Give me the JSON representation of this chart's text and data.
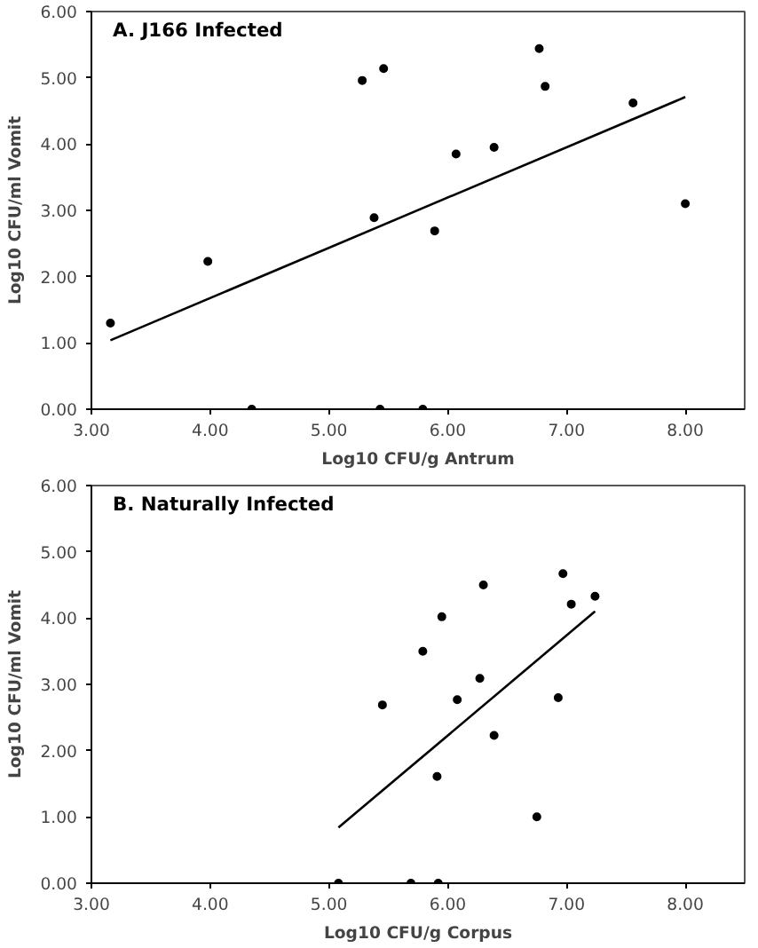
{
  "chart_data": [
    {
      "type": "scatter",
      "title": "A.  J166 Infected",
      "xlabel": "Log10 CFU/g Antrum",
      "ylabel": "Log10 CFU/ml Vomit",
      "xlim": [
        3,
        8.5
      ],
      "ylim": [
        0,
        6
      ],
      "xticks": [
        {
          "value": 3,
          "label": "3.00"
        },
        {
          "value": 4,
          "label": "4.00"
        },
        {
          "value": 5,
          "label": "5.00"
        },
        {
          "value": 6,
          "label": "6.00"
        },
        {
          "value": 7,
          "label": "7.00"
        },
        {
          "value": 8,
          "label": "8.00"
        }
      ],
      "yticks": [
        {
          "value": 0,
          "label": "0.00"
        },
        {
          "value": 1,
          "label": "1.00"
        },
        {
          "value": 2,
          "label": "2.00"
        },
        {
          "value": 3,
          "label": "3.00"
        },
        {
          "value": 4,
          "label": "4.00"
        },
        {
          "value": 5,
          "label": "5.00"
        },
        {
          "value": 6,
          "label": "6.00"
        }
      ],
      "grid": false,
      "series": [
        {
          "marker": "circle",
          "color": "#000000",
          "x": [
            3.16,
            3.98,
            4.35,
            5.28,
            5.46,
            5.38,
            5.43,
            5.79,
            5.89,
            6.07,
            6.39,
            6.77,
            6.82,
            7.56,
            8.0
          ],
          "values": [
            1.3,
            2.23,
            0,
            4.96,
            5.14,
            2.89,
            0,
            0,
            2.69,
            3.85,
            3.95,
            5.44,
            4.87,
            4.62,
            3.1
          ]
        },
        {
          "type": "line",
          "color": "#000000",
          "x": [
            3.16,
            8.0
          ],
          "values": [
            1.04,
            4.71
          ]
        }
      ]
    },
    {
      "type": "scatter",
      "title": "B.  Naturally Infected",
      "xlabel": "Log10 CFU/g Corpus",
      "ylabel": "Log10 CFU/ml Vomit",
      "xlim": [
        3,
        8.5
      ],
      "ylim": [
        0,
        6
      ],
      "xticks": [
        {
          "value": 3,
          "label": "3.00"
        },
        {
          "value": 4,
          "label": "4.00"
        },
        {
          "value": 5,
          "label": "5.00"
        },
        {
          "value": 6,
          "label": "6.00"
        },
        {
          "value": 7,
          "label": "7.00"
        },
        {
          "value": 8,
          "label": "8.00"
        }
      ],
      "yticks": [
        {
          "value": 0,
          "label": "0.00"
        },
        {
          "value": 1,
          "label": "1.00"
        },
        {
          "value": 2,
          "label": "2.00"
        },
        {
          "value": 3,
          "label": "3.00"
        },
        {
          "value": 4,
          "label": "4.00"
        },
        {
          "value": 5,
          "label": "5.00"
        },
        {
          "value": 6,
          "label": "6.00"
        }
      ],
      "grid": false,
      "series": [
        {
          "marker": "circle",
          "color": "#000000",
          "x": [
            5.08,
            5.45,
            5.69,
            5.79,
            5.91,
            5.92,
            5.95,
            6.08,
            6.27,
            6.3,
            6.39,
            6.75,
            6.93,
            6.97,
            7.04,
            7.24
          ],
          "values": [
            0,
            2.69,
            0,
            3.5,
            1.61,
            0,
            4.02,
            2.77,
            3.09,
            4.5,
            2.23,
            1.0,
            2.8,
            4.67,
            4.21,
            4.33
          ]
        },
        {
          "type": "line",
          "color": "#000000",
          "x": [
            5.08,
            7.24
          ],
          "values": [
            0.84,
            4.1
          ]
        }
      ]
    }
  ]
}
